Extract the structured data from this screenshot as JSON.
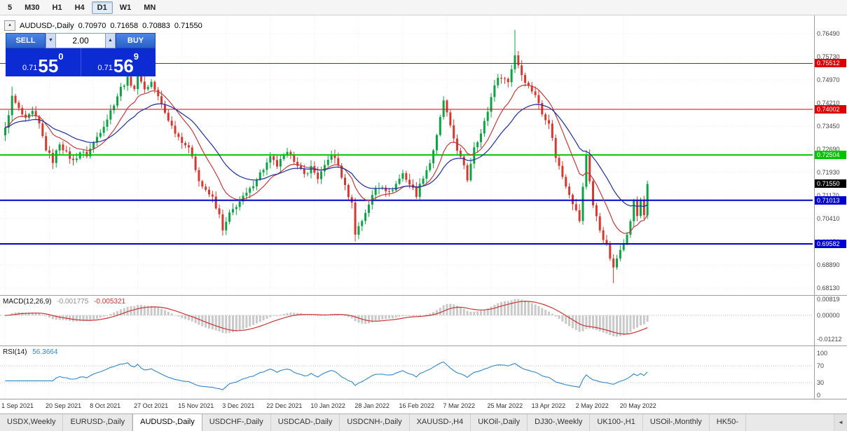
{
  "toolbar": {
    "periods": [
      {
        "label": "5",
        "active": false
      },
      {
        "label": "M30",
        "active": false
      },
      {
        "label": "H1",
        "active": false
      },
      {
        "label": "H4",
        "active": false
      },
      {
        "label": "D1",
        "active": true
      },
      {
        "label": "W1",
        "active": false
      },
      {
        "label": "MN",
        "active": false
      }
    ]
  },
  "chart": {
    "header": {
      "symbol": "AUDUSD-,Daily",
      "open": "0.70970",
      "high": "0.71658",
      "low": "0.70883",
      "close": "0.71550",
      "collapse_icon": "▴"
    },
    "trade_panel": {
      "sell_label": "SELL",
      "buy_label": "BUY",
      "volume": "2.00",
      "spin_down_icon": "▼",
      "spin_up_icon": "▲",
      "sell_price_base": "0.71",
      "sell_price_big": "55",
      "sell_price_sup": "0",
      "buy_price_base": "0.71",
      "buy_price_big": "56",
      "buy_price_sup": "9"
    },
    "y_axis_labels": [
      "0.76490",
      "0.75730",
      "0.74970",
      "0.74210",
      "0.73450",
      "0.72690",
      "0.71930",
      "0.71170",
      "0.70410",
      "0.69650",
      "0.68890",
      "0.68130"
    ],
    "price_levels": [
      {
        "label": "0.75512",
        "value": 0.75512,
        "color": "#dd0000",
        "width": 1
      },
      {
        "label": "0.74002",
        "value": 0.74002,
        "color": "#dd0000",
        "width": 1
      },
      {
        "label": "0.72504",
        "value": 0.72504,
        "color": "#00c400",
        "width": 2
      },
      {
        "label": "0.71013",
        "value": 0.71013,
        "color": "#0000cc",
        "width": 2
      },
      {
        "label": "0.69582",
        "value": 0.69582,
        "color": "#0000cc",
        "width": 2
      }
    ],
    "current_price": {
      "label": "0.71550",
      "value": 0.7155,
      "color": "#000000"
    },
    "x_axis_labels": [
      "1 Sep 2021",
      "20 Sep 2021",
      "8 Oct 2021",
      "27 Oct 2021",
      "15 Nov 2021",
      "3 Dec 2021",
      "22 Dec 2021",
      "10 Jan 2022",
      "28 Jan 2022",
      "16 Feb 2022",
      "7 Mar 2022",
      "25 Mar 2022",
      "13 Apr 2022",
      "2 May 2022",
      "20 May 2022"
    ]
  },
  "chart_data": {
    "type": "candlestick",
    "symbol": "AUDUSD",
    "timeframe": "Daily",
    "bars": 190,
    "bars_per_label": 13,
    "noise": 0.0016,
    "y_range": [
      0.6813,
      0.7649
    ],
    "close_anchors": [
      [
        0,
        0.7335
      ],
      [
        2,
        0.744
      ],
      [
        4,
        0.74
      ],
      [
        6,
        0.7365
      ],
      [
        8,
        0.739
      ],
      [
        10,
        0.735
      ],
      [
        12,
        0.727
      ],
      [
        14,
        0.723
      ],
      [
        16,
        0.729
      ],
      [
        18,
        0.7255
      ],
      [
        20,
        0.723
      ],
      [
        22,
        0.726
      ],
      [
        24,
        0.725
      ],
      [
        26,
        0.729
      ],
      [
        28,
        0.733
      ],
      [
        30,
        0.737
      ],
      [
        32,
        0.742
      ],
      [
        34,
        0.747
      ],
      [
        36,
        0.75
      ],
      [
        38,
        0.747
      ],
      [
        39,
        0.753
      ],
      [
        41,
        0.7465
      ],
      [
        43,
        0.749
      ],
      [
        45,
        0.744
      ],
      [
        47,
        0.739
      ],
      [
        49,
        0.7345
      ],
      [
        51,
        0.731
      ],
      [
        53,
        0.7285
      ],
      [
        55,
        0.725
      ],
      [
        57,
        0.7165
      ],
      [
        59,
        0.713
      ],
      [
        61,
        0.711
      ],
      [
        63,
        0.705
      ],
      [
        64,
        0.7
      ],
      [
        66,
        0.7055
      ],
      [
        68,
        0.7085
      ],
      [
        70,
        0.711
      ],
      [
        72,
        0.7135
      ],
      [
        74,
        0.7175
      ],
      [
        76,
        0.7205
      ],
      [
        78,
        0.724
      ],
      [
        80,
        0.7215
      ],
      [
        82,
        0.7245
      ],
      [
        84,
        0.726
      ],
      [
        86,
        0.721
      ],
      [
        88,
        0.7185
      ],
      [
        90,
        0.721
      ],
      [
        92,
        0.7175
      ],
      [
        94,
        0.721
      ],
      [
        96,
        0.7255
      ],
      [
        98,
        0.7215
      ],
      [
        100,
        0.7145
      ],
      [
        102,
        0.709
      ],
      [
        103,
        0.6995
      ],
      [
        105,
        0.7035
      ],
      [
        107,
        0.709
      ],
      [
        109,
        0.714
      ],
      [
        111,
        0.715
      ],
      [
        113,
        0.7125
      ],
      [
        115,
        0.7155
      ],
      [
        117,
        0.719
      ],
      [
        119,
        0.7155
      ],
      [
        121,
        0.712
      ],
      [
        123,
        0.718
      ],
      [
        125,
        0.7225
      ],
      [
        127,
        0.731
      ],
      [
        129,
        0.743
      ],
      [
        131,
        0.734
      ],
      [
        133,
        0.727
      ],
      [
        135,
        0.721
      ],
      [
        136,
        0.717
      ],
      [
        138,
        0.728
      ],
      [
        140,
        0.732
      ],
      [
        142,
        0.7395
      ],
      [
        144,
        0.7485
      ],
      [
        146,
        0.751
      ],
      [
        148,
        0.749
      ],
      [
        150,
        0.758
      ],
      [
        152,
        0.7515
      ],
      [
        154,
        0.7475
      ],
      [
        156,
        0.745
      ],
      [
        158,
        0.7385
      ],
      [
        160,
        0.736
      ],
      [
        162,
        0.7245
      ],
      [
        164,
        0.718
      ],
      [
        166,
        0.7125
      ],
      [
        168,
        0.7065
      ],
      [
        169,
        0.7035
      ],
      [
        171,
        0.725
      ],
      [
        173,
        0.7085
      ],
      [
        175,
        0.7005
      ],
      [
        177,
        0.695
      ],
      [
        179,
        0.6875
      ],
      [
        181,
        0.6945
      ],
      [
        183,
        0.6985
      ],
      [
        184,
        0.7035
      ],
      [
        185,
        0.7095
      ],
      [
        186,
        0.705
      ],
      [
        187,
        0.7105
      ],
      [
        188,
        0.7055
      ],
      [
        189,
        0.7155
      ]
    ],
    "wick_overrides": {
      "2": {
        "h": 0.7475
      },
      "39": {
        "h": 0.7556
      },
      "64": {
        "l": 0.6985
      },
      "103": {
        "l": 0.6966
      },
      "129": {
        "h": 0.7443
      },
      "150": {
        "h": 0.7661
      },
      "171": {
        "h": 0.7266
      },
      "179": {
        "l": 0.6829
      },
      "189": {
        "h": 0.7166
      }
    },
    "overlays": [
      {
        "name": "ma-fast",
        "type": "ema",
        "period": 12,
        "color": "#c23b3b"
      },
      {
        "name": "ma-slow",
        "type": "ema",
        "period": 26,
        "color": "#1b2d9e"
      }
    ]
  },
  "macd": {
    "label": "MACD(12,26,9)",
    "value_main": "-0.001775",
    "value_signal": "-0.005321",
    "axis_labels": [
      "0.00819",
      "0.00000",
      "-0.01212"
    ],
    "axis_values": [
      0.00819,
      0,
      -0.01212
    ],
    "fast": 12,
    "slow": 26,
    "signal": 9,
    "histogram_color": "#c9c9c9",
    "signal_color": "#cc3333"
  },
  "rsi": {
    "label": "RSI(14)",
    "value": "56.3664",
    "period": 14,
    "axis_labels": [
      "100",
      "70",
      "30",
      "0"
    ],
    "axis_values": [
      100,
      70,
      30,
      0
    ],
    "levels": [
      70,
      30
    ],
    "line_color": "#2e86c8"
  },
  "tabs": {
    "scroll_left_icon": "◄",
    "items": [
      {
        "label": "USDX,Weekly",
        "active": false
      },
      {
        "label": "EURUSD-,Daily",
        "active": false
      },
      {
        "label": "AUDUSD-,Daily",
        "active": true
      },
      {
        "label": "USDCHF-,Daily",
        "active": false
      },
      {
        "label": "USDCAD-,Daily",
        "active": false
      },
      {
        "label": "USDCNH-,Daily",
        "active": false
      },
      {
        "label": "XAUUSD-,H4",
        "active": false
      },
      {
        "label": "UKOil-,Daily",
        "active": false
      },
      {
        "label": "DJ30-,Weekly",
        "active": false
      },
      {
        "label": "UK100-,H1",
        "active": false
      },
      {
        "label": "USOil-,Monthly",
        "active": false
      },
      {
        "label": "HK50-",
        "active": false
      }
    ]
  },
  "colors": {
    "up": "#0da243",
    "down": "#d6382f",
    "grid": "#ededed",
    "pane_border": "#9e9e9e",
    "axis_text": "#444444"
  }
}
